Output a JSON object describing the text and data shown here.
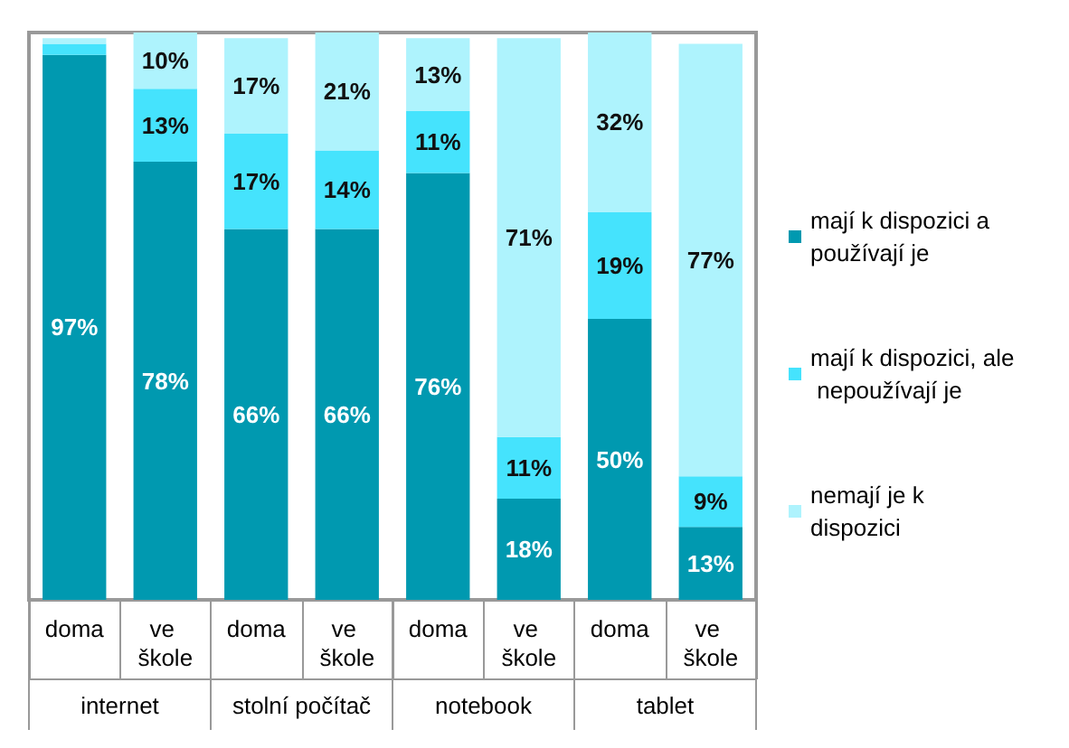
{
  "chart_data": {
    "type": "bar",
    "stacked": true,
    "categories": [
      "doma",
      "ve škole",
      "doma",
      "ve škole",
      "doma",
      "ve škole",
      "doma",
      "ve škole"
    ],
    "annotations": [
      "internet",
      "stolní počítač",
      "notebook",
      "tablet"
    ],
    "series": [
      {
        "name": "mají k dispozici a používají je",
        "color": "#0099b0",
        "values": [
          97,
          78,
          66,
          66,
          76,
          18,
          50,
          13
        ],
        "value_labels": [
          "97%",
          "78%",
          "66%",
          "66%",
          "76%",
          "18%",
          "50%",
          "13%"
        ]
      },
      {
        "name": "mají k dispozici, ale nepoužívají je",
        "color": "#45e3fd",
        "values": [
          2,
          13,
          17,
          14,
          11,
          11,
          19,
          9
        ],
        "value_labels": [
          null,
          "13%",
          "17%",
          "14%",
          "11%",
          "11%",
          "19%",
          "9%"
        ]
      },
      {
        "name": "nemají je k dispozici",
        "color": "#aef3fd",
        "values": [
          1,
          10,
          17,
          21,
          13,
          71,
          32,
          77
        ],
        "value_labels": [
          null,
          "10%",
          "17%",
          "21%",
          "13%",
          "71%",
          "32%",
          "77%"
        ]
      }
    ],
    "legend": "right",
    "grid": false
  }
}
